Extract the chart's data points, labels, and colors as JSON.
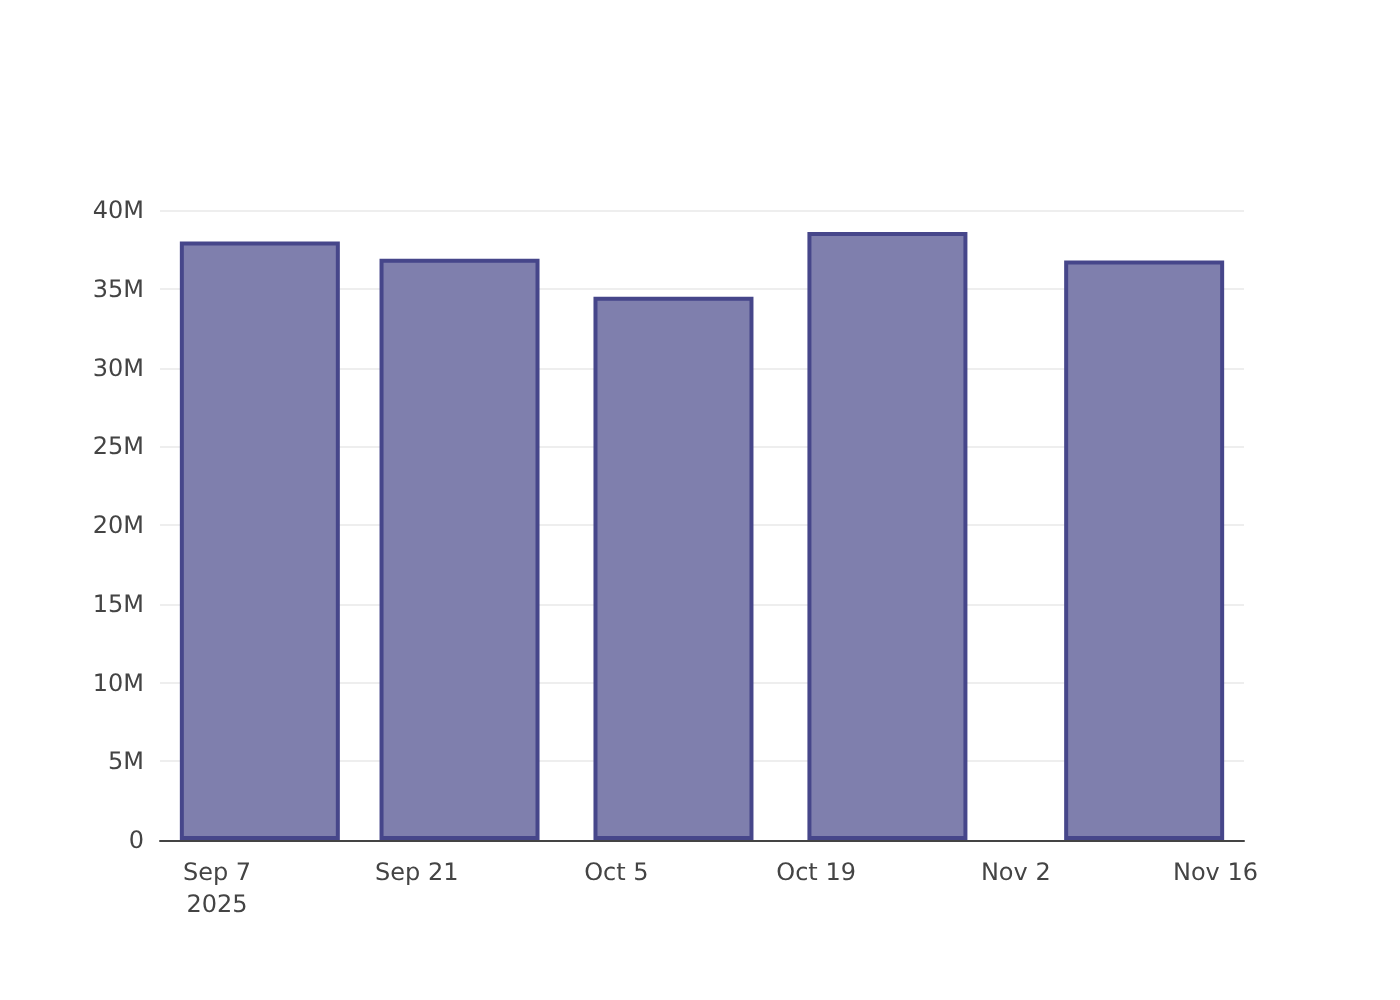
{
  "chart_data": {
    "type": "bar",
    "x": [
      "2025-09-10",
      "2025-09-24",
      "2025-10-09",
      "2025-10-24",
      "2025-11-11"
    ],
    "values": [
      38000000,
      36900000,
      34500000,
      38600000,
      36800000
    ],
    "color": "#7f7fad",
    "xlim": [
      "2025-09-03",
      "2025-11-18"
    ],
    "xticks": [
      {
        "value": "2025-09-07",
        "label": "Sep 7\n2025"
      },
      {
        "value": "2025-09-21",
        "label": "Sep 21"
      },
      {
        "value": "2025-10-05",
        "label": "Oct 5"
      },
      {
        "value": "2025-10-19",
        "label": "Oct 19"
      },
      {
        "value": "2025-11-02",
        "label": "Nov 2"
      },
      {
        "value": "2025-11-16",
        "label": "Nov 16"
      }
    ],
    "ylim": [
      0,
      40000000
    ],
    "yticks": [
      0,
      {
        "value": 5000000,
        "label": "5M"
      },
      {
        "value": 10000000,
        "label": "10M"
      },
      {
        "value": 15000000,
        "label": "15M"
      },
      {
        "value": 20000000,
        "label": "20M"
      },
      {
        "value": 25000000,
        "label": "25M"
      },
      {
        "value": 30000000,
        "label": "30M"
      },
      {
        "value": 35000000,
        "label": "35M"
      },
      {
        "value": 40000000,
        "label": "40M"
      }
    ],
    "grid": "y"
  }
}
